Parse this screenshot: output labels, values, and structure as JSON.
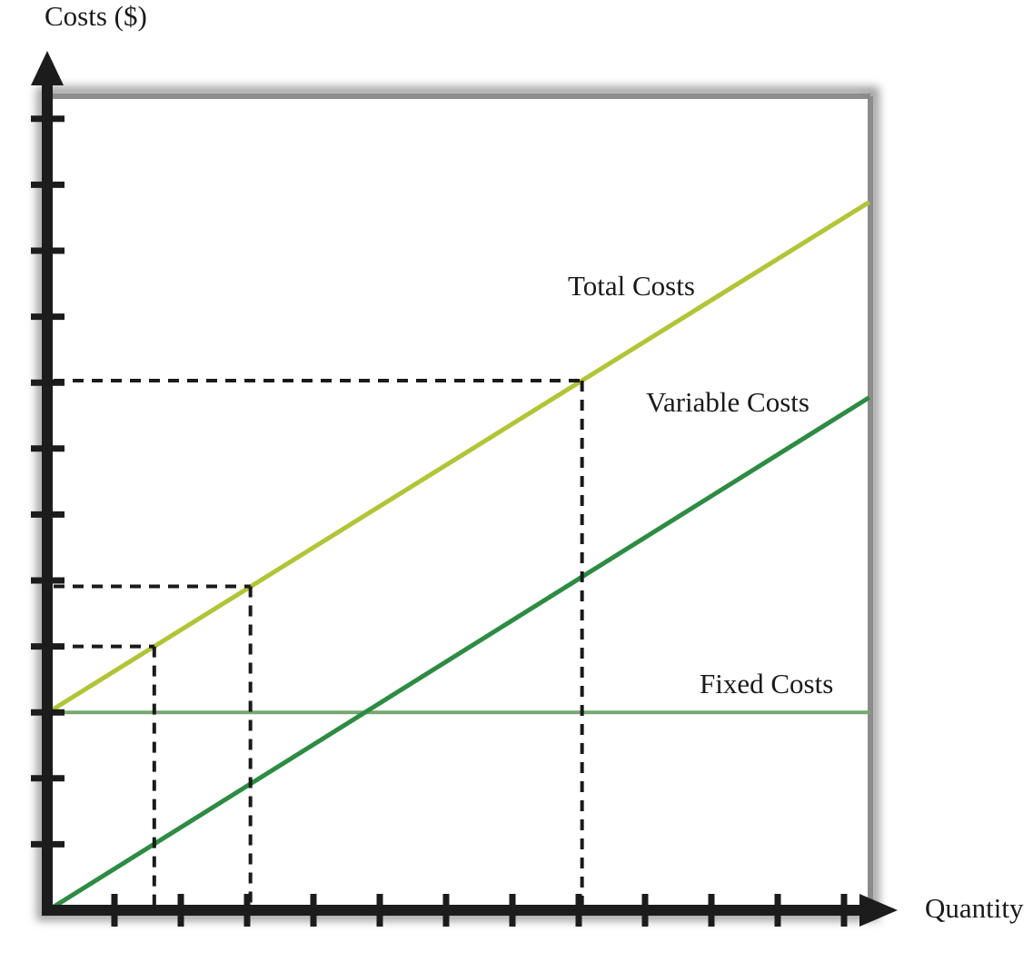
{
  "labels": {
    "y_axis_title": "Costs ($)",
    "x_axis_title": "Quantity",
    "total_costs": "Total Costs",
    "variable_costs": "Variable Costs",
    "fixed_costs": "Fixed Costs"
  },
  "colors": {
    "total_line": "#b2c437",
    "variable_line": "#2e8b44",
    "fixed_line": "#79a76e",
    "axis": "#1c1c1c",
    "dashed_guide": "#1a1a1a",
    "plot_border": "#8c8c8c",
    "text": "#1a1a1a",
    "background": "#ffffff"
  },
  "chart_data": {
    "type": "line",
    "title": "",
    "xlabel": "Quantity",
    "ylabel": "Costs ($)",
    "x_tick_count": 12,
    "y_tick_count": 12,
    "numeric_axis_labels_shown": false,
    "units_note": "no numeric scale shown; values expressed in axis-tick units (1 unit = 1 tick)",
    "xlim": [
      0,
      12.4
    ],
    "ylim": [
      0,
      12.4
    ],
    "grid": false,
    "legend": "inline labels next to each line",
    "series": [
      {
        "name": "Total Costs",
        "form": "linear",
        "intercept": 3,
        "slope": 0.625,
        "x_start": 0,
        "x_end": 12.38,
        "color": "#b2c437"
      },
      {
        "name": "Variable Costs",
        "form": "linear",
        "intercept": 0,
        "slope": 0.628,
        "x_start": 0,
        "x_end": 12.38,
        "color": "#2e8b44"
      },
      {
        "name": "Fixed Costs",
        "form": "linear",
        "intercept": 3,
        "slope": 0,
        "x_start": 0,
        "x_end": 12.4,
        "color": "#79a76e"
      }
    ],
    "dashed_guides": [
      {
        "quantity": 1.6,
        "total_cost": 4.0,
        "description": "dashed drop lines from Total Costs line to both axes"
      },
      {
        "quantity": 3.05,
        "total_cost": 4.91,
        "description": "dashed drop lines from Total Costs line to both axes"
      },
      {
        "quantity": 8.05,
        "total_cost": 8.03,
        "description": "dashed drop lines from Total Costs line to both axes"
      }
    ],
    "annotations": [
      {
        "text": "Total Costs",
        "attached_to": "Total Costs line"
      },
      {
        "text": "Variable Costs",
        "attached_to": "Variable Costs line"
      },
      {
        "text": "Fixed Costs",
        "attached_to": "Fixed Costs line"
      }
    ]
  }
}
